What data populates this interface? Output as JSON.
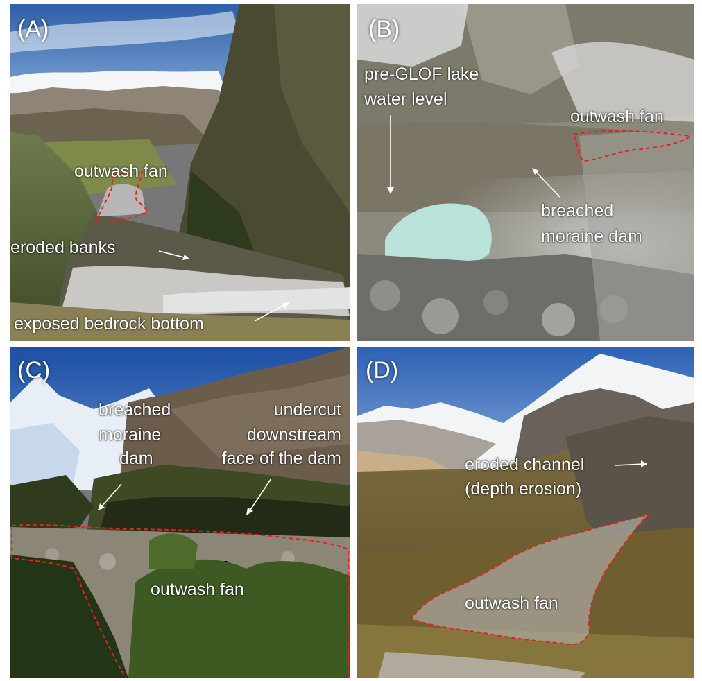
{
  "panels": {
    "a": {
      "tag": "(A)",
      "labels": {
        "outwash_fan": "outwash fan",
        "eroded_banks": "eroded banks",
        "bedrock": "exposed bedrock bottom"
      }
    },
    "b": {
      "tag": "(B)",
      "labels": {
        "lake_level_1": "pre-GLOF lake",
        "lake_level_2": "water level",
        "outwash_fan": "outwash fan",
        "moraine_1": "breached",
        "moraine_2": "moraine dam"
      }
    },
    "c": {
      "tag": "(C)",
      "labels": {
        "moraine_1": "breached",
        "moraine_2": "moraine",
        "moraine_3": "dam",
        "undercut_1": "undercut",
        "undercut_2": "downstream",
        "undercut_3": "face of the dam",
        "outwash_fan": "outwash fan"
      }
    },
    "d": {
      "tag": "(D)",
      "labels": {
        "channel_1": "eroded channel",
        "channel_2": "(depth erosion)",
        "outwash_fan": "outwash fan"
      }
    }
  },
  "colors": {
    "outline": "#e8201e",
    "label": "#ffffff"
  }
}
